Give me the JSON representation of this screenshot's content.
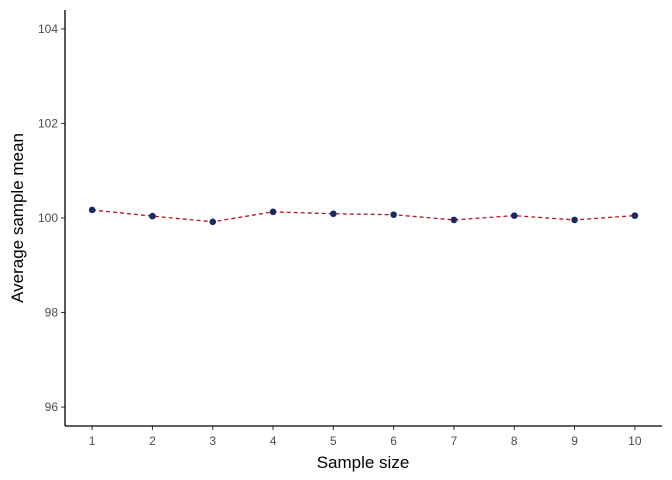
{
  "chart_data": {
    "type": "line",
    "title": "",
    "xlabel": "Sample size",
    "ylabel": "Average sample mean",
    "x": [
      1,
      2,
      3,
      4,
      5,
      6,
      7,
      8,
      9,
      10
    ],
    "series": [
      {
        "values": [
          100.17,
          100.04,
          99.92,
          100.13,
          100.09,
          100.07,
          99.96,
          100.05,
          99.96,
          100.05
        ]
      }
    ],
    "xlim": [
      0.55,
      10.45
    ],
    "ylim": [
      95.6,
      104.4
    ],
    "xticks": [
      1,
      2,
      3,
      4,
      5,
      6,
      7,
      8,
      9,
      10
    ],
    "yticks": [
      96,
      98,
      100,
      102,
      104
    ],
    "line_style": "dashed",
    "grid": false,
    "colors": {
      "line": "#b2182b",
      "points": "#1a2a5e",
      "axis": "#000000",
      "tick_text": "#4d4d4d"
    }
  }
}
